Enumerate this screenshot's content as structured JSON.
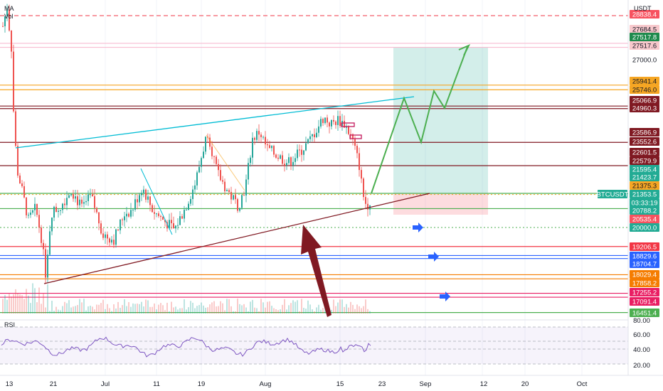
{
  "indicators": {
    "ma": "MA",
    "vol": "Vol"
  },
  "currency": "USDT",
  "rsi": {
    "label": "RSI",
    "levels": [
      "80.00",
      "60.00",
      "40.00",
      "20.00"
    ]
  },
  "time_labels": [
    "13",
    "21",
    "Jul",
    "11",
    "19",
    "Aug",
    "15",
    "23",
    "Sep",
    "12",
    "20",
    "Oct"
  ],
  "price_labels": [
    {
      "text": "28838.4",
      "bg": "#f7525f",
      "fg": "#ffffff"
    },
    {
      "text": "27684.5",
      "bg": "#f8c8cc",
      "fg": "#131722"
    },
    {
      "text": "27517.8",
      "bg": "#1e8a4c",
      "fg": "#ffffff"
    },
    {
      "text": "27517.6",
      "bg": "#f8c8cc",
      "fg": "#131722"
    },
    {
      "text": "27000.0",
      "bg": "#ffffff",
      "fg": "#131722"
    },
    {
      "text": "25941.4",
      "bg": "#f6a623",
      "fg": "#131722"
    },
    {
      "text": "25746.0",
      "bg": "#f6a623",
      "fg": "#131722"
    },
    {
      "text": "25066.9",
      "bg": "#801922",
      "fg": "#ffffff"
    },
    {
      "text": "24960.3",
      "bg": "#801922",
      "fg": "#ffffff"
    },
    {
      "text": "23586.9",
      "bg": "#801922",
      "fg": "#ffffff"
    },
    {
      "text": "23552.6",
      "bg": "#801922",
      "fg": "#ffffff"
    },
    {
      "text": "22601.5",
      "bg": "#801922",
      "fg": "#ffffff"
    },
    {
      "text": "22579.9",
      "bg": "#801922",
      "fg": "#ffffff"
    },
    {
      "text": "21595.4",
      "bg": "#22ab94",
      "fg": "#ffffff"
    },
    {
      "text": "21423.7",
      "bg": "#22ab94",
      "fg": "#ffffff"
    },
    {
      "text": "21375.3",
      "bg": "#f6a623",
      "fg": "#131722"
    },
    {
      "text": "21353.5",
      "bg": "#22ab94",
      "fg": "#ffffff"
    },
    {
      "text": "03:33:19",
      "bg": "#22ab94",
      "fg": "#ffffff"
    },
    {
      "text": "20788.2",
      "bg": "#22ab94",
      "fg": "#ffffff"
    },
    {
      "text": "20535.4",
      "bg": "#f7525f",
      "fg": "#ffffff"
    },
    {
      "text": "20000.0",
      "bg": "#22ab94",
      "fg": "#ffffff"
    },
    {
      "text": "19206.5",
      "bg": "#f23645",
      "fg": "#ffffff"
    },
    {
      "text": "18829.6",
      "bg": "#2962ff",
      "fg": "#ffffff"
    },
    {
      "text": "18704.7",
      "bg": "#2962ff",
      "fg": "#ffffff"
    },
    {
      "text": "18029.4",
      "bg": "#f57c00",
      "fg": "#ffffff"
    },
    {
      "text": "17858.2",
      "bg": "#f57c00",
      "fg": "#ffffff"
    },
    {
      "text": "17255.2",
      "bg": "#e91e63",
      "fg": "#ffffff"
    },
    {
      "text": "17091.4",
      "bg": "#e91e63",
      "fg": "#ffffff"
    },
    {
      "text": "16451.4",
      "bg": "#4caf50",
      "fg": "#ffffff"
    }
  ],
  "symbol_tag": {
    "text": "BTCUSDT",
    "bg": "#22ab94"
  },
  "horizontal_lines": [
    {
      "price": 28838.4,
      "color": "#f23645",
      "style": "dashed"
    },
    {
      "price": 27684.5,
      "color": "#f8bbd0",
      "style": "solid"
    },
    {
      "price": 27517.6,
      "color": "#f8bbd0",
      "style": "solid"
    },
    {
      "price": 25941.4,
      "color": "#f6a623",
      "style": "solid"
    },
    {
      "price": 25746.0,
      "color": "#f6a623",
      "style": "solid"
    },
    {
      "price": 25066.9,
      "color": "#801922",
      "style": "solid"
    },
    {
      "price": 24960.3,
      "color": "#801922",
      "style": "solid"
    },
    {
      "price": 23552.6,
      "color": "#801922",
      "style": "solid"
    },
    {
      "price": 22579.9,
      "color": "#801922",
      "style": "solid"
    },
    {
      "price": 21423.7,
      "color": "#4caf50",
      "style": "solid"
    },
    {
      "price": 21375.3,
      "color": "#f6a623",
      "style": "dotted"
    },
    {
      "price": 20788.2,
      "color": "#4caf50",
      "style": "solid"
    },
    {
      "price": 20000.0,
      "color": "#4caf50",
      "style": "dotted"
    },
    {
      "price": 19206.5,
      "color": "#f23645",
      "style": "solid"
    },
    {
      "price": 18829.6,
      "color": "#2962ff",
      "style": "solid"
    },
    {
      "price": 18704.7,
      "color": "#2962ff",
      "style": "solid"
    },
    {
      "price": 18029.4,
      "color": "#f57c00",
      "style": "solid"
    },
    {
      "price": 17858.2,
      "color": "#f57c00",
      "style": "solid"
    },
    {
      "price": 17255.2,
      "color": "#e91e63",
      "style": "solid"
    },
    {
      "price": 17091.4,
      "color": "#e91e63",
      "style": "solid"
    },
    {
      "price": 16451.4,
      "color": "#4caf50",
      "style": "solid"
    }
  ],
  "colors": {
    "up": "#26a69a",
    "down": "#ef5350",
    "rsi_line": "#7e57c2",
    "target_zone": "#22ab94",
    "stop_zone": "#f7525f",
    "projection": "#4caf50",
    "arrow": "#801922",
    "blue_arrow": "#2962ff"
  }
}
